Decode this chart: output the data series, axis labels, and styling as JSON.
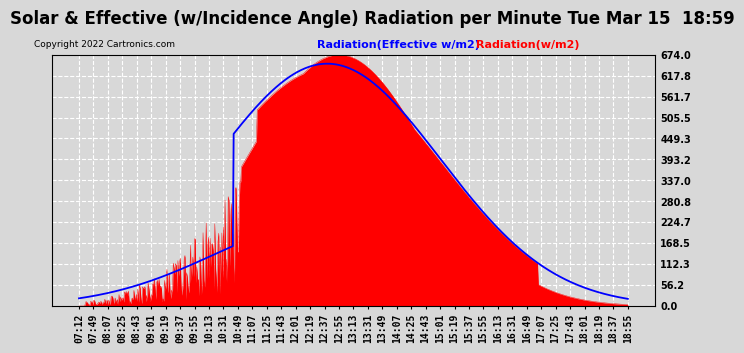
{
  "title": "Solar & Effective (w/Incidence Angle) Radiation per Minute Tue Mar 15  18:59",
  "copyright": "Copyright 2022 Cartronics.com",
  "ylim": [
    0,
    674.0
  ],
  "yticks": [
    0.0,
    56.2,
    112.3,
    168.5,
    224.7,
    280.8,
    337.0,
    393.2,
    449.3,
    505.5,
    561.7,
    617.8,
    674.0
  ],
  "legend_effective": "Radiation(Effective w/m2)",
  "legend_solar": "Radiation(w/m2)",
  "bg_color": "#d8d8d8",
  "plot_bg_color": "#d8d8d8",
  "grid_color": "#ffffff",
  "red_color": "#ff0000",
  "blue_color": "#0000ff",
  "title_fontsize": 12,
  "tick_fontsize": 7,
  "x_tick_labels": [
    "07:12",
    "07:49",
    "08:07",
    "08:25",
    "08:43",
    "09:01",
    "09:19",
    "09:37",
    "09:55",
    "10:13",
    "10:31",
    "10:49",
    "11:07",
    "11:25",
    "11:43",
    "12:01",
    "12:19",
    "12:37",
    "12:55",
    "13:13",
    "13:31",
    "13:49",
    "14:07",
    "14:25",
    "14:43",
    "15:01",
    "15:19",
    "15:37",
    "15:55",
    "16:13",
    "16:31",
    "16:49",
    "17:07",
    "17:25",
    "17:43",
    "18:01",
    "18:19",
    "18:37",
    "18:55"
  ]
}
